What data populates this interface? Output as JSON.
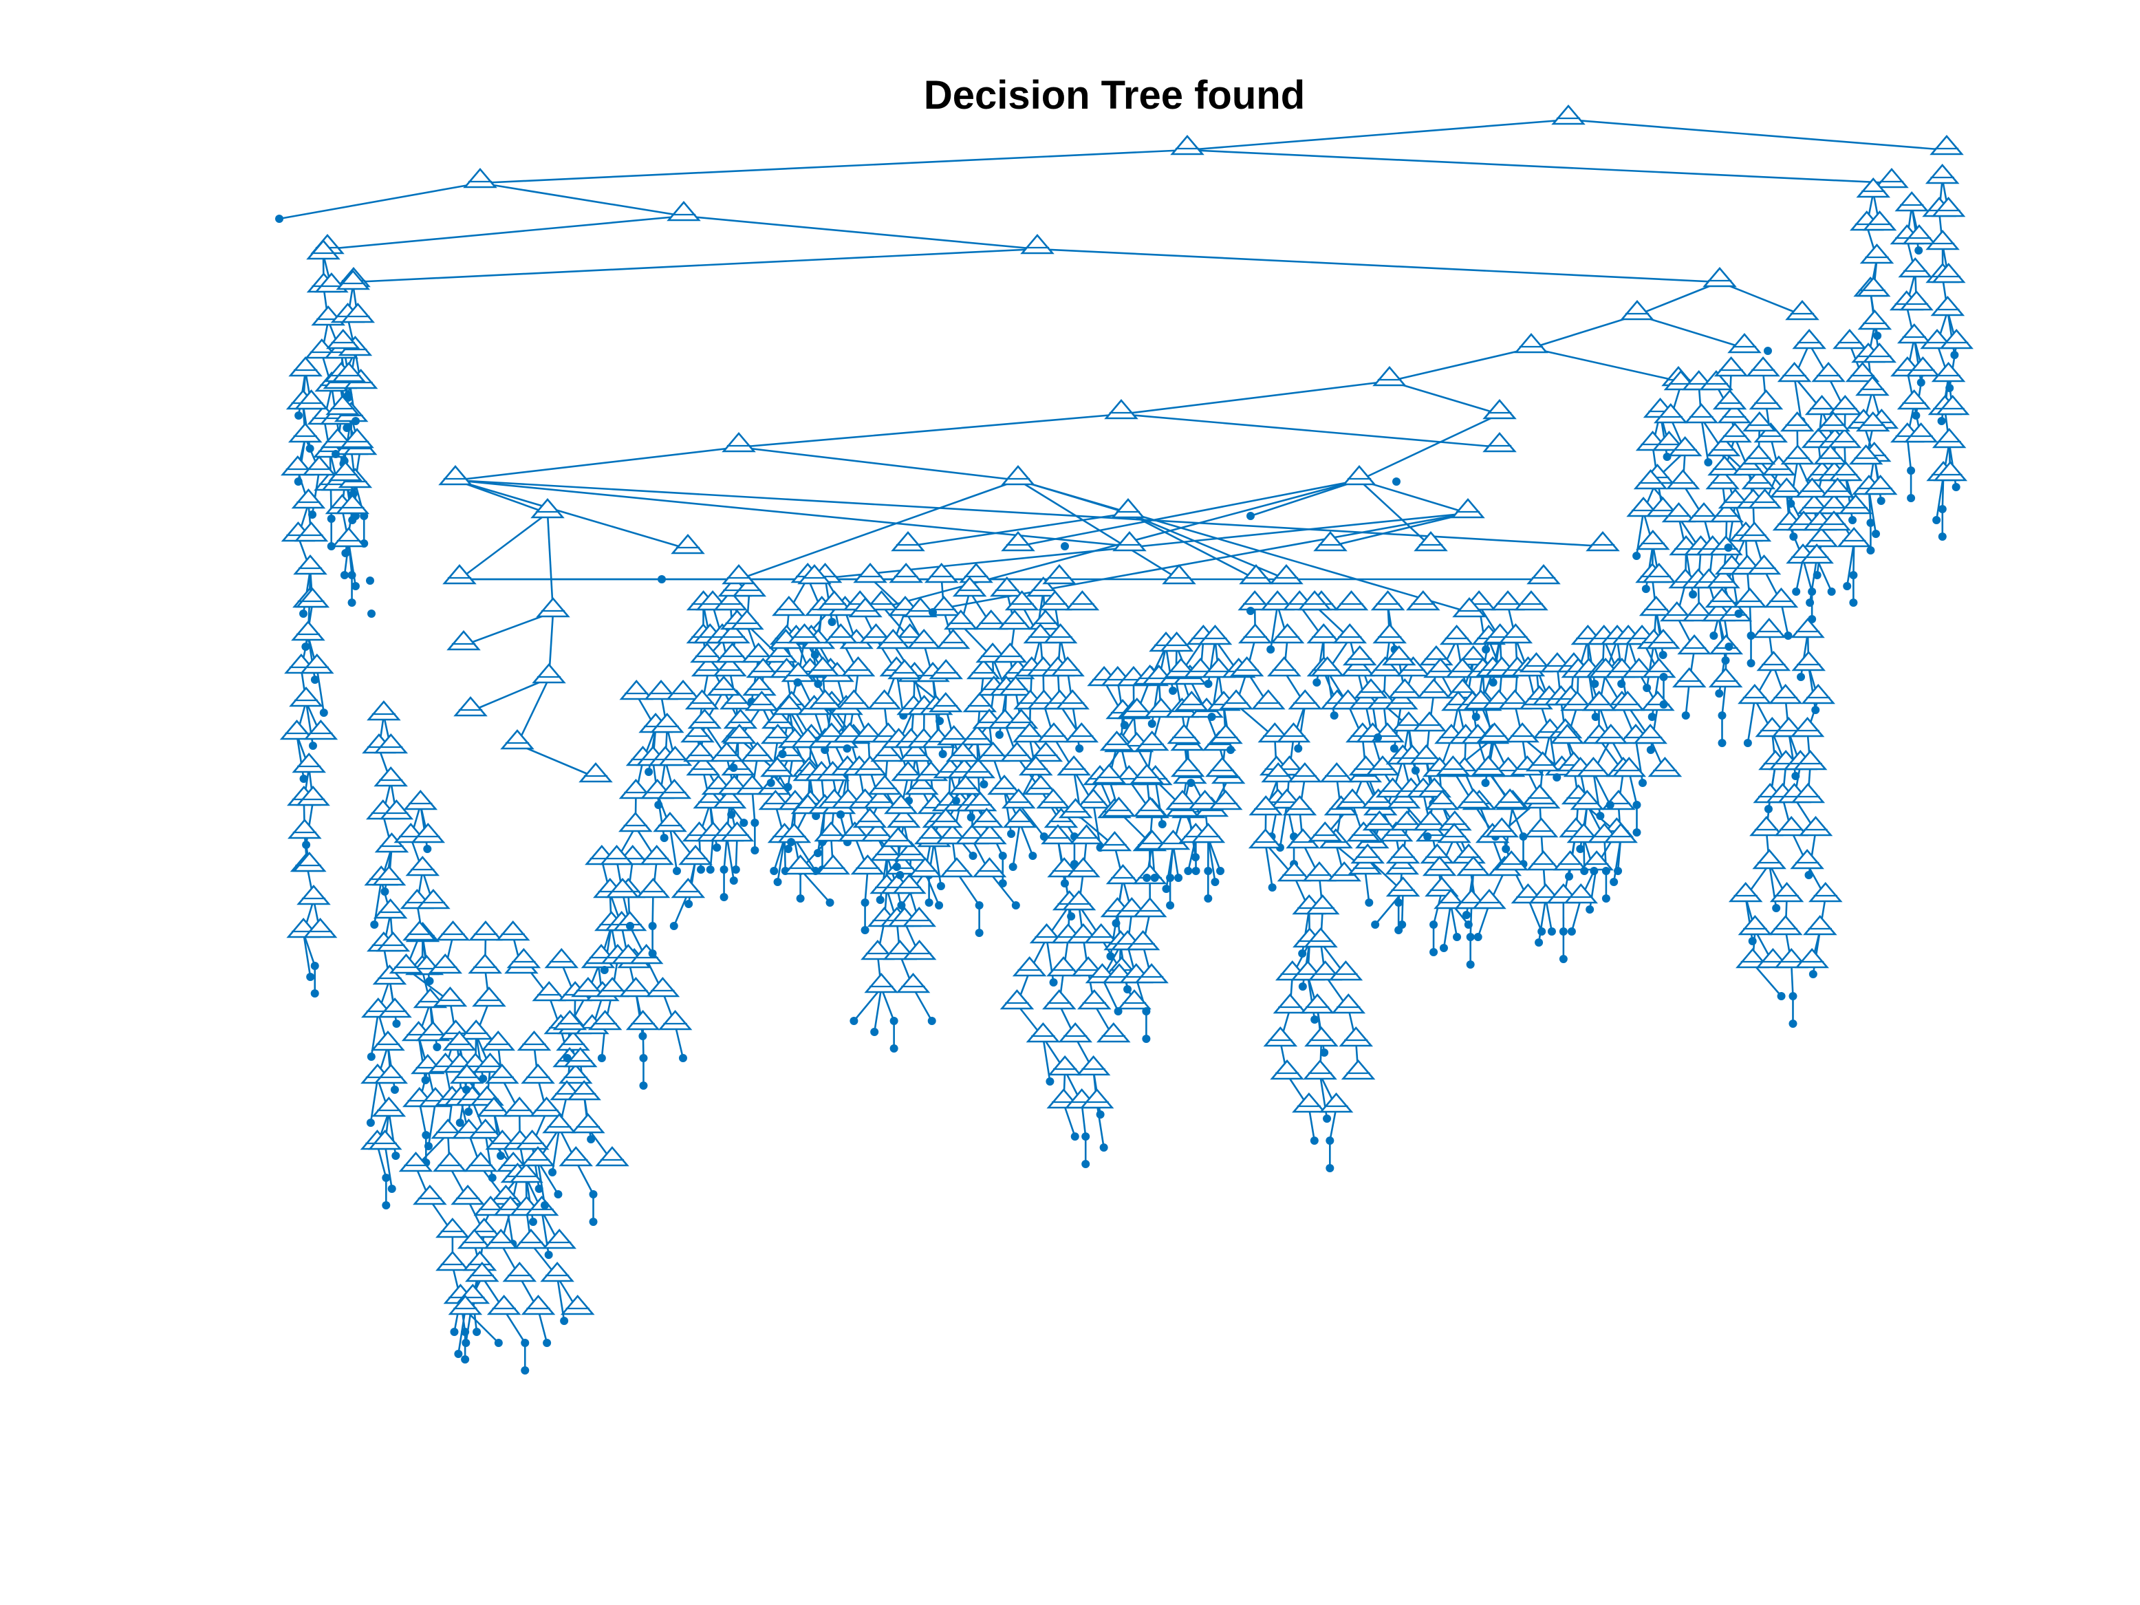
{
  "title": "Decision Tree found",
  "colors": {
    "tree": "#0072BD",
    "background": "#ffffff",
    "title": "#000000"
  },
  "legend": {
    "branch_node": "triangle-icon",
    "leaf_node": "dot-icon"
  }
}
